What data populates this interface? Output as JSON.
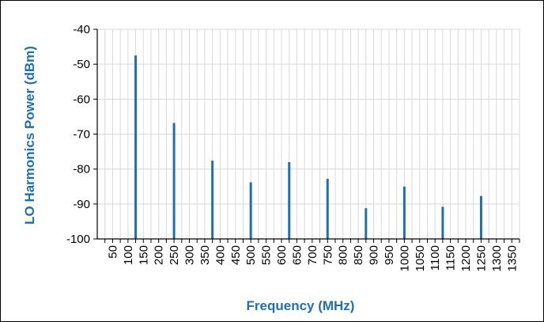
{
  "chart_data": {
    "type": "bar",
    "title": "",
    "xlabel": "Frequency (MHz)",
    "ylabel": "LO Harmonics Power (dBm)",
    "xlim": [
      0,
      1375
    ],
    "ylim": [
      -100,
      -40
    ],
    "x_ticks": [
      50,
      100,
      150,
      200,
      250,
      300,
      350,
      400,
      450,
      500,
      550,
      600,
      650,
      700,
      750,
      800,
      850,
      900,
      950,
      1000,
      1050,
      1100,
      1150,
      1200,
      1250,
      1300,
      1350
    ],
    "y_ticks": [
      -100,
      -90,
      -80,
      -70,
      -60,
      -50,
      -40
    ],
    "grid": true,
    "series": [
      {
        "color": "#1f6fb5",
        "x": [
          125,
          250,
          375,
          500,
          625,
          750,
          875,
          1000,
          1125,
          1250
        ],
        "values": [
          -47.5,
          -66.8,
          -77.6,
          -83.8,
          -78.0,
          -82.8,
          -91.2,
          -85.0,
          -90.8,
          -87.7
        ]
      }
    ]
  }
}
